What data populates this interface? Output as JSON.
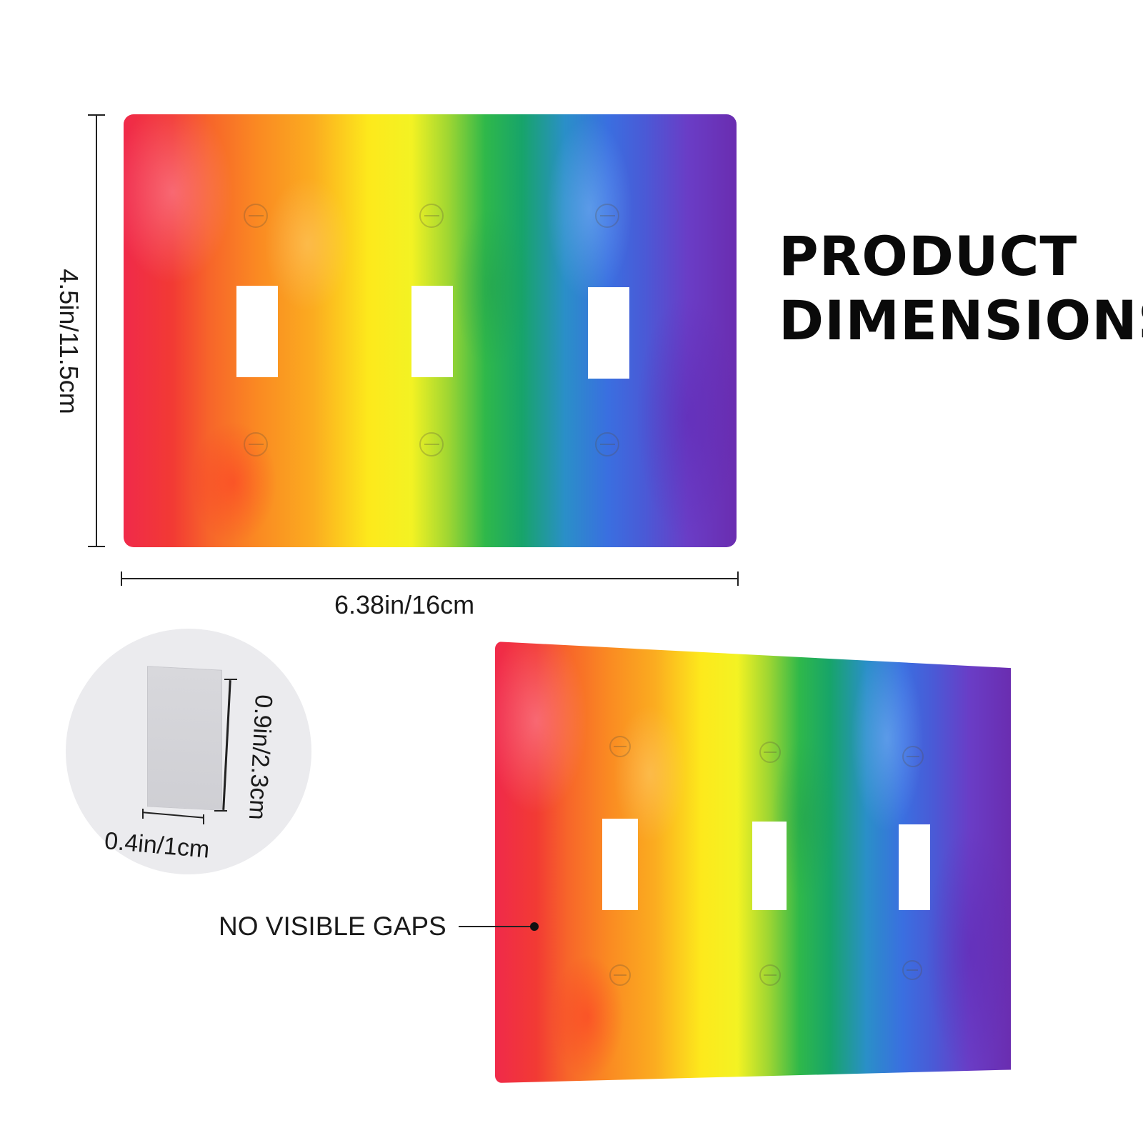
{
  "title": {
    "line1": "PRODUCT",
    "line2": "DIMENSIONS"
  },
  "dimensions": {
    "height": "4.5in/11.5cm",
    "width": "6.38in/16cm",
    "depth": "0.9in/2.3cm",
    "thickness": "0.4in/1cm"
  },
  "callout": "NO VISIBLE GAPS",
  "product": {
    "type": "triple toggle wall plate",
    "toggle_openings": 3,
    "pattern": "rainbow watercolor",
    "colors": [
      "#f02a4a",
      "#fa8a22",
      "#fde91c",
      "#2fb84a",
      "#3a6fe0",
      "#6a2db0"
    ]
  }
}
